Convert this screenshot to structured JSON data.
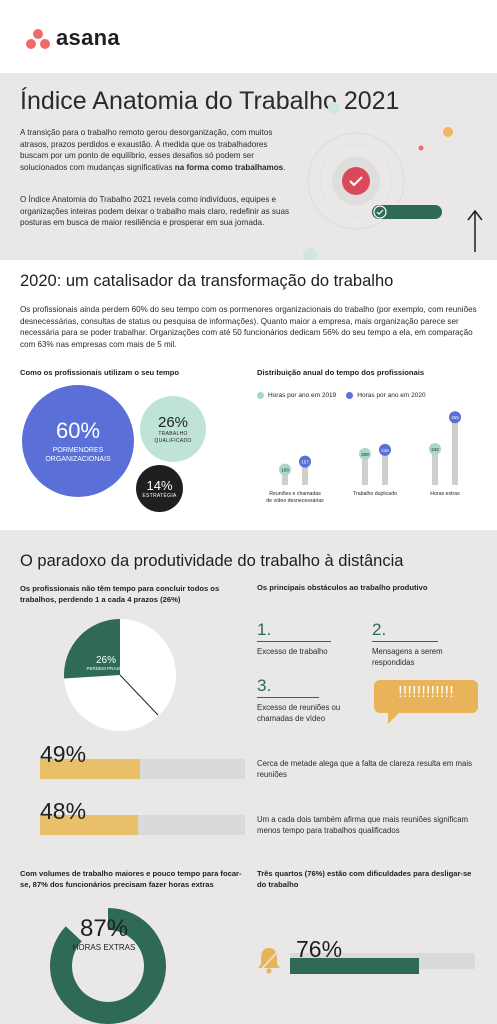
{
  "brand": {
    "name": "asana",
    "dot_color": "#f06a6a"
  },
  "hero": {
    "title": "Índice Anatomia do Trabalho 2021",
    "paragraph1_pre": "A transição para o trabalho remoto gerou desorganização, com muitos atrasos, prazos perdidos e exaustão. À medida que os trabalhadores buscam por um ponto de equilíbrio, esses desafios só podem ser solucionados com mudanças significativas ",
    "paragraph1_bold": "na forma como trabalhamos",
    "paragraph1_post": ".",
    "paragraph2": "O Índice Anatomia do Trabalho 2021 revela como indivíduos, equipes e organizações inteiras podem deixar o trabalho mais claro, redefinir as suas posturas em busca de maior resiliência e prosperar em sua jornada."
  },
  "catalyst": {
    "title": "2020: um catalisador da transformação do trabalho",
    "paragraph": "Os profissionais ainda perdem 60% do seu tempo com os pormenores organizacionais do trabalho (por exemplo, com reuniões desnecessárias, consultas de status ou pesquisa de informações). Quanto maior a empresa, mais organização parece ser necessária para se poder trabalhar. Organizações com até 50 funcionários dedicam 56% do seu tempo a ela, em comparação com 63% nas empresas com mais de 5 mil.",
    "time_use": {
      "heading": "Como os profissionais utilizam o seu tempo",
      "bubbles": [
        {
          "value": "60%",
          "label": "PORMENORES ORGANIZACIONAIS",
          "color": "#5a6fd8"
        },
        {
          "value": "26%",
          "label": "TRABALHO QUALIFICADO",
          "color": "#bfe3d9"
        },
        {
          "value": "14%",
          "label": "ESTRATÉGIA",
          "color": "#1e1f21"
        }
      ]
    }
  },
  "chart_data": {
    "type": "bar",
    "title": "Distribuição anual do tempo dos profissionais",
    "categories": [
      "Reuniões e chamadas de vídeo desnecessárias",
      "Trabalho duplicado",
      "Horas extras"
    ],
    "series": [
      {
        "name": "Horas por ano em 2019",
        "values": [
          103,
          209,
          242
        ],
        "color": "#a6d8cd"
      },
      {
        "name": "Horas por ano em 2020",
        "values": [
          157,
          236,
          455
        ],
        "color": "#5a6fd8"
      }
    ],
    "legend": "top"
  },
  "paradox": {
    "title": "O paradoxo da produtividade do trabalho à distância",
    "deadlines_heading": "Os profissionais não têm tempo para concluir todos os trabalhos, perdendo 1 a cada 4 prazos (26%)",
    "pie": {
      "value": "26%",
      "label": "PERDEM PRAZOS",
      "fraction": 0.26,
      "color": "#2f6a57"
    },
    "obstacles_heading": "Os principais obstáculos ao trabalho produtivo",
    "obstacles": [
      {
        "num": "1.",
        "text": "Excesso de trabalho"
      },
      {
        "num": "2.",
        "text": "Mensagens a serem respondidas"
      },
      {
        "num": "3.",
        "text": "Excesso de reuniões ou chamadas de vídeo"
      }
    ],
    "bubble_text": "!!!!!!!!!!!!",
    "bars": [
      {
        "value": "49%",
        "fraction": 0.49,
        "text": "Cerca de metade alega que a falta de clareza resulta em mais reuniões"
      },
      {
        "value": "48%",
        "fraction": 0.48,
        "text": "Um a cada dois também afirma que mais reuniões significam menos tempo para trabalhos qualificados"
      }
    ],
    "overtime_heading": "Com volumes de trabalho maiores e pouco tempo para focar-se, 87% dos funcionários precisam fazer horas extras",
    "overtime": {
      "value": "87%",
      "label": "HORAS EXTRAS",
      "fraction": 0.87,
      "color": "#2f6a57"
    },
    "disconnect_heading": "Três quartos (76%) estão com dificuldades para desligar-se do trabalho",
    "disconnect": {
      "value": "76%",
      "fraction": 0.76,
      "color": "#2f6a57"
    }
  }
}
